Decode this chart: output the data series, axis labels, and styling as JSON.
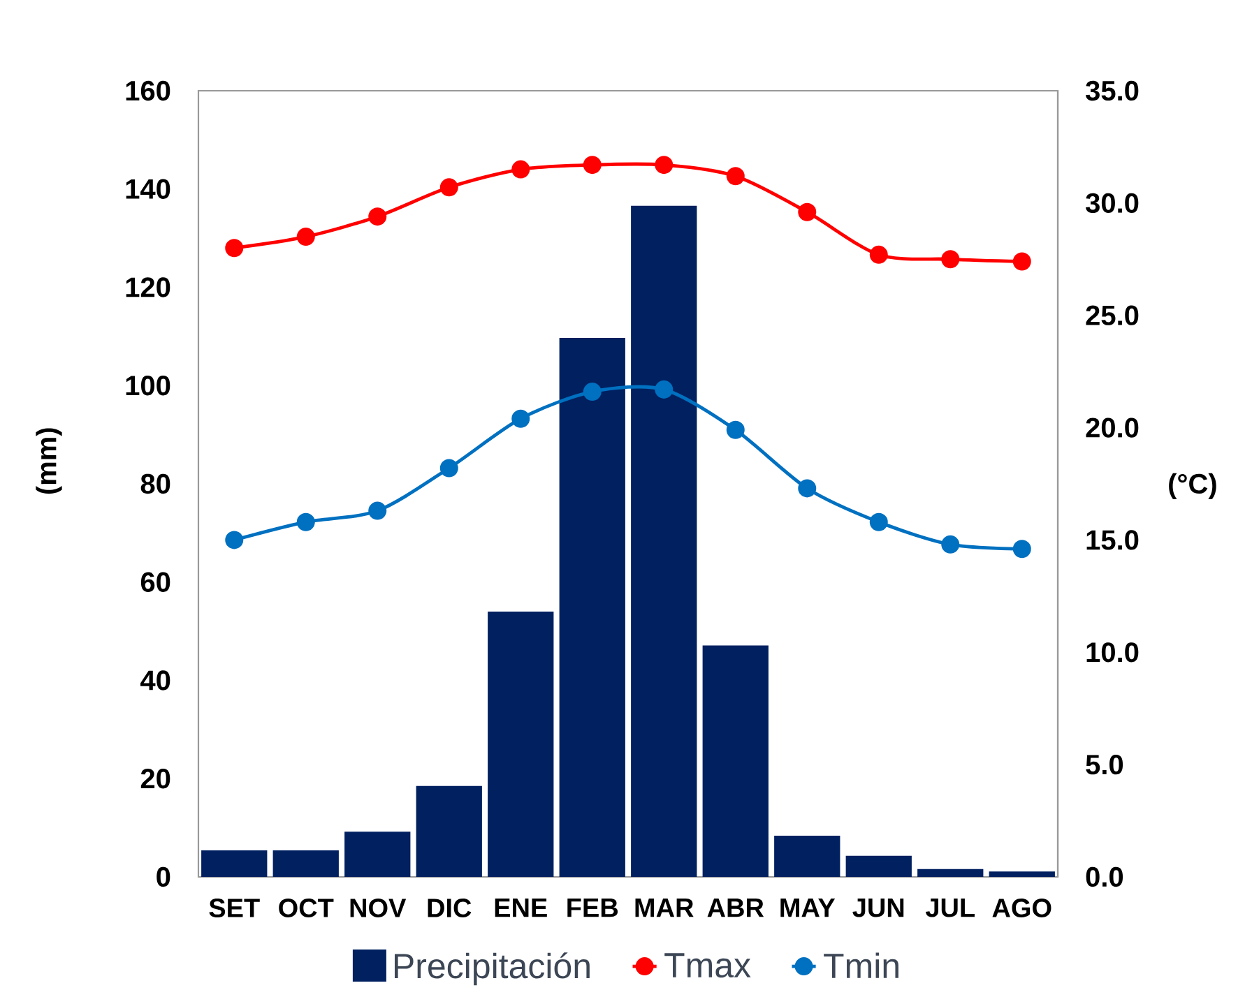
{
  "chart_data": {
    "type": "bar",
    "categories": [
      "SET",
      "OCT",
      "NOV",
      "DIC",
      "ENE",
      "FEB",
      "MAR",
      "ABR",
      "MAY",
      "JUN",
      "JUL",
      "AGO"
    ],
    "ylabel": "(mm)",
    "y2label": "(°C)",
    "ylim": [
      0,
      160
    ],
    "yticks": [
      0,
      20,
      40,
      60,
      80,
      100,
      120,
      140,
      160
    ],
    "y2lim": [
      0,
      35
    ],
    "y2ticks": [
      {
        "value": 0,
        "label": "0.0"
      },
      {
        "value": 5,
        "label": "5.0"
      },
      {
        "value": 10,
        "label": "10.0"
      },
      {
        "value": 15,
        "label": "15.0"
      },
      {
        "value": 20,
        "label": "20.0"
      },
      {
        "value": 25,
        "label": "25.0"
      },
      {
        "value": 30,
        "label": "30.0"
      },
      {
        "value": 35,
        "label": "35.0"
      }
    ],
    "legend": "bottom",
    "series": [
      {
        "name": "Precipitación",
        "color": "#002060",
        "values": [
          5.4,
          5.4,
          9.2,
          18.5,
          54.0,
          109.7,
          136.6,
          47.1,
          8.4,
          4.3,
          1.6,
          1.1
        ]
      },
      {
        "name": "Tmax",
        "type": "line",
        "axis": "y2",
        "color": "#FF0000",
        "marker": "circle",
        "values": [
          28.0,
          28.5,
          29.4,
          30.7,
          31.5,
          31.7,
          31.7,
          31.2,
          29.6,
          27.7,
          27.5,
          27.4
        ]
      },
      {
        "name": "Tmin",
        "type": "line",
        "axis": "y2",
        "color": "#0070C0",
        "marker": "circle",
        "values": [
          15.0,
          15.8,
          16.3,
          18.2,
          20.4,
          21.6,
          21.7,
          19.9,
          17.3,
          15.8,
          14.8,
          14.6
        ]
      }
    ]
  }
}
